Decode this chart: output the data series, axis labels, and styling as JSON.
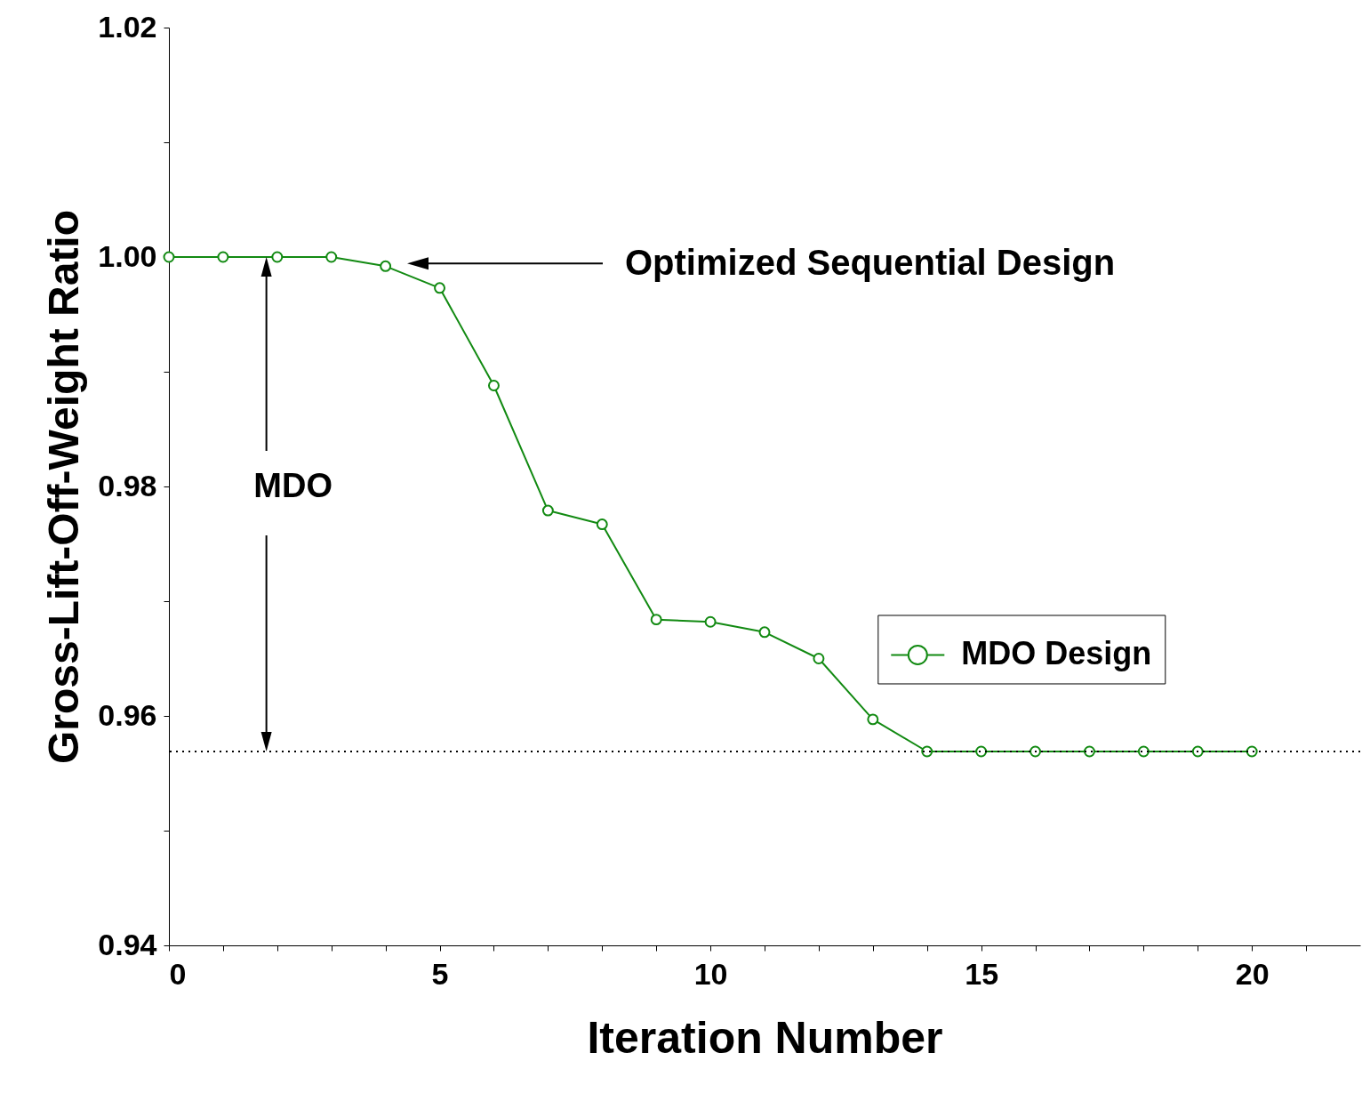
{
  "chart_data": {
    "type": "line",
    "xlabel": "Iteration Number",
    "ylabel": "Gross-Lift-Off-Weight Ratio",
    "x": [
      0,
      1,
      2,
      3,
      4,
      5,
      6,
      7,
      8,
      9,
      10,
      11,
      12,
      13,
      14,
      15,
      16,
      17,
      18,
      19,
      20
    ],
    "series": [
      {
        "name": "MDO Design",
        "color": "#128a12",
        "values": [
          1.0,
          1.0,
          1.0,
          1.0,
          0.9992,
          0.9973,
          0.9888,
          0.9779,
          0.9767,
          0.9684,
          0.9682,
          0.9673,
          0.965,
          0.9597,
          0.9569,
          0.9569,
          0.9569,
          0.9569,
          0.9569,
          0.9569,
          0.9569
        ]
      }
    ],
    "xlim": [
      0,
      22
    ],
    "xticks": [
      0,
      {
        "value": 1,
        "label": null
      },
      {
        "value": 2,
        "label": null
      },
      {
        "value": 3,
        "label": null
      },
      {
        "value": 4,
        "label": null
      },
      5,
      {
        "value": 6,
        "label": null
      },
      {
        "value": 7,
        "label": null
      },
      {
        "value": 8,
        "label": null
      },
      {
        "value": 9,
        "label": null
      },
      10,
      {
        "value": 11,
        "label": null
      },
      {
        "value": 12,
        "label": null
      },
      {
        "value": 13,
        "label": null
      },
      {
        "value": 14,
        "label": null
      },
      15,
      {
        "value": 16,
        "label": null
      },
      {
        "value": 17,
        "label": null
      },
      {
        "value": 18,
        "label": null
      },
      {
        "value": 19,
        "label": null
      },
      20,
      {
        "value": 21,
        "label": null
      }
    ],
    "ylim": [
      0.94,
      1.02
    ],
    "yticks": [
      0.94,
      {
        "value": 0.95,
        "label": null
      },
      0.96,
      {
        "value": 0.97,
        "label": null
      },
      0.98,
      {
        "value": 0.99,
        "label": null
      },
      {
        "value": 1,
        "label": "1.00"
      },
      {
        "value": 1.01,
        "label": null
      },
      1.02
    ],
    "ref_lines": [
      {
        "axis": "y",
        "value": 0.9569,
        "color": "#000000",
        "line_style": "dotted"
      }
    ],
    "annotations": [
      "Optimized Sequential Design",
      "MDO"
    ],
    "marker": "circle",
    "line_style": "solid",
    "grid": false,
    "legend": "right"
  }
}
